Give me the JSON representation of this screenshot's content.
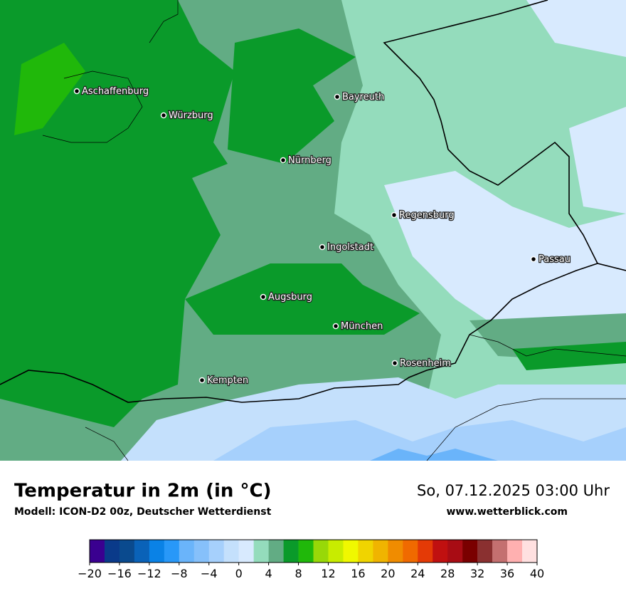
{
  "title": "Temperatur in 2m (in °C)",
  "subtitle": "Modell: ICON-D2 00z, Deutscher Wetterdienst",
  "datetime": "So, 07.12.2025 03:00 Uhr",
  "website": "www.wetterblick.com",
  "cities": [
    "Aschaffenburg",
    "Würzburg",
    "Bayreuth",
    "Nürnberg",
    "Regensburg",
    "Ingolstadt",
    "Passau",
    "Augsburg",
    "München",
    "Rosenheim",
    "Kempten"
  ],
  "colorbar": {
    "lim": [
      -20,
      40
    ],
    "colors": [
      "#3a0090",
      "#0a3a8a",
      "#0a4a8e",
      "#0a62b8",
      "#0a82e6",
      "#2898f8",
      "#6ab4fa",
      "#86c0fa",
      "#a6d0fc",
      "#c4e0fc",
      "#d8eafe",
      "#94dcbc",
      "#62ac84",
      "#0a9a2a",
      "#20b80a",
      "#98d808",
      "#c8ec00",
      "#f0f800",
      "#f0d400",
      "#f0b400",
      "#f08c00",
      "#f06a00",
      "#e43a06",
      "#c01010",
      "#a80c14",
      "#7a0000",
      "#8a3030",
      "#c47070",
      "#ffb0b0",
      "#ffe0e0"
    ],
    "ticks": [
      {
        "value": -20,
        "label": "−20"
      },
      {
        "value": -16,
        "label": "−16"
      },
      {
        "value": -12,
        "label": "−12"
      },
      {
        "value": -8,
        "label": "−8"
      },
      {
        "value": -4,
        "label": "−4"
      },
      0,
      4,
      8,
      12,
      16,
      20,
      24,
      28,
      32,
      36,
      40
    ]
  }
}
